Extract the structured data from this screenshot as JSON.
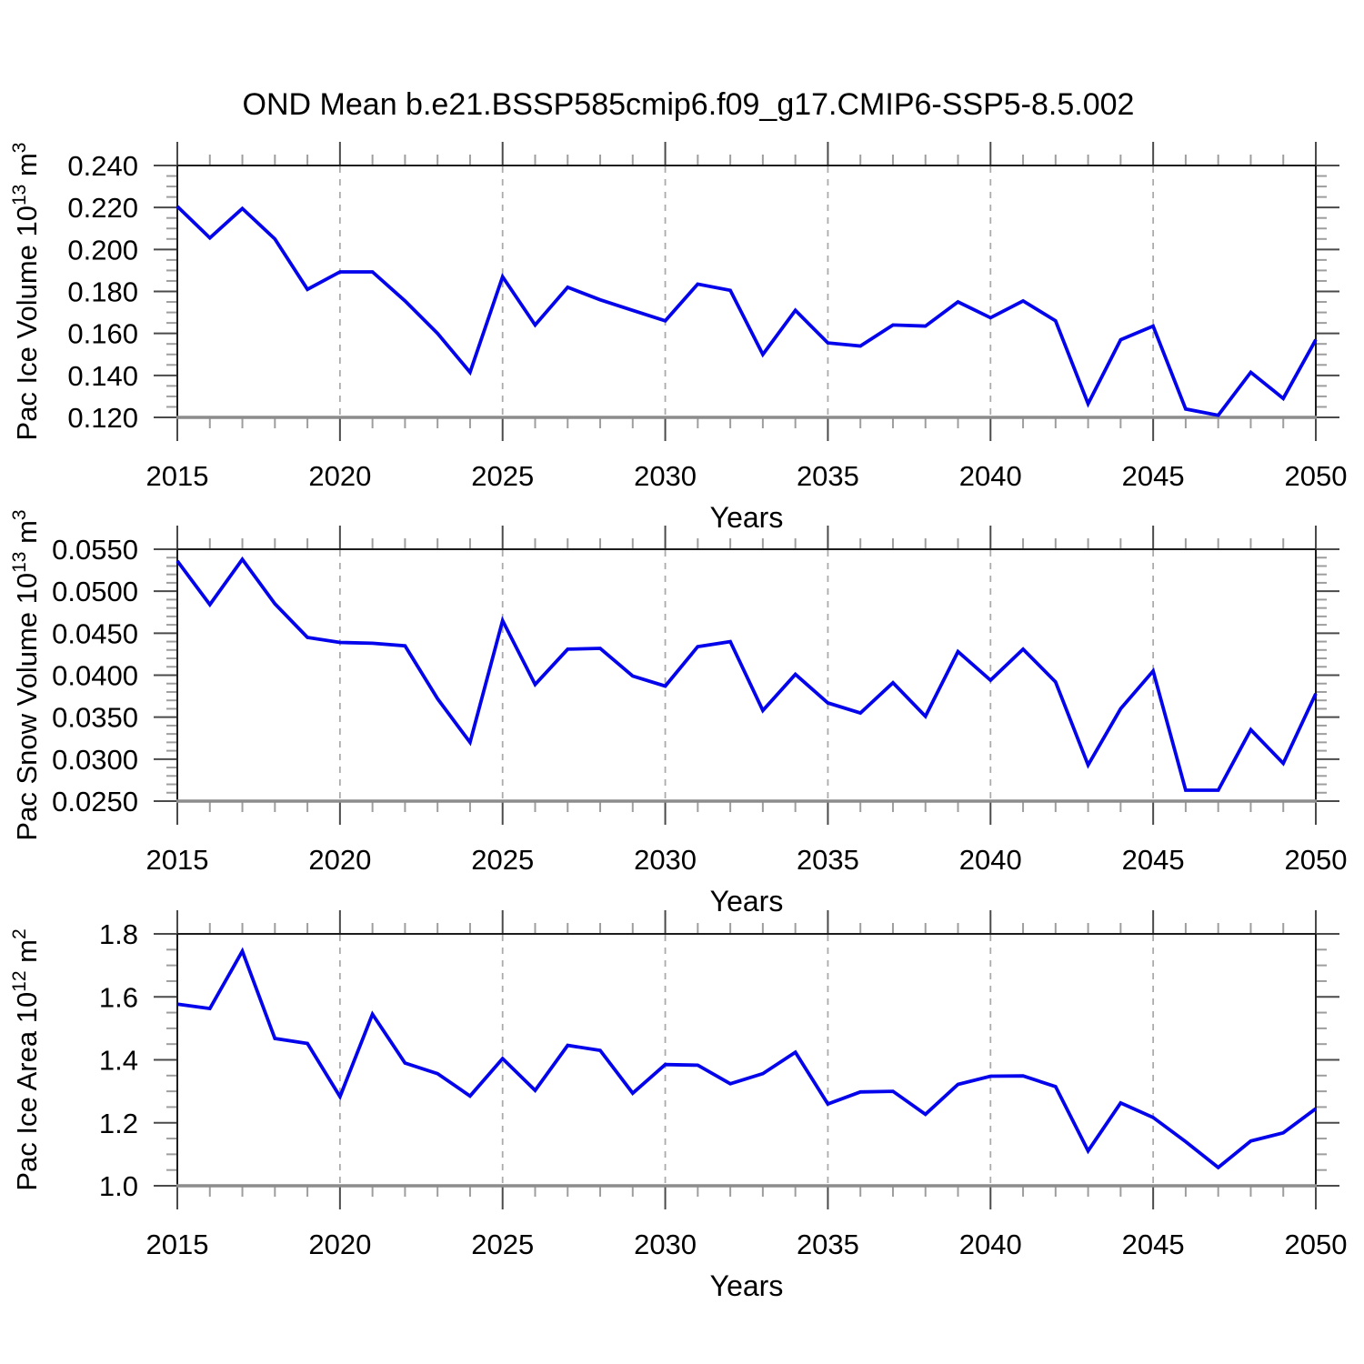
{
  "title": "OND Mean b.e21.BSSP585cmip6.f09_g17.CMIP6-SSP5-8.5.002",
  "colors": {
    "line": "#0404EC",
    "grid": "#ABABAB",
    "frame": "#1C1C1C",
    "axis_base": "#8C8C8C",
    "tick_major": "#4A4A4A",
    "tick_minor": "#9E9E9E",
    "text": "#000000"
  },
  "x_axis": {
    "label": "Years",
    "xlim": [
      2015,
      2050
    ],
    "major_ticks": [
      2015,
      2020,
      2025,
      2030,
      2035,
      2040,
      2045,
      2050
    ],
    "minor_step": 1,
    "gridline_years": [
      2020,
      2025,
      2030,
      2035,
      2040,
      2045
    ],
    "years": [
      2015,
      2016,
      2017,
      2018,
      2019,
      2020,
      2021,
      2022,
      2023,
      2024,
      2025,
      2026,
      2027,
      2028,
      2029,
      2030,
      2031,
      2032,
      2033,
      2034,
      2035,
      2036,
      2037,
      2038,
      2039,
      2040,
      2041,
      2042,
      2043,
      2044,
      2045,
      2046,
      2047,
      2048,
      2049,
      2050
    ]
  },
  "chart_data": [
    {
      "type": "line",
      "name": "pac-ice-volume",
      "ylabel": "Pac Ice Volume 10^13 m^3",
      "ylabel_parts": [
        {
          "t": "Pac Ice Volume 10"
        },
        {
          "t": "13",
          "sup": true
        },
        {
          "t": " m"
        },
        {
          "t": "3",
          "sup": true
        }
      ],
      "ylim": [
        0.12,
        0.24
      ],
      "y_major_step": 0.02,
      "y_minor_step": 0.005,
      "y_tick_decimals": 3,
      "grid": "vertical-dashed",
      "legend": "none",
      "values": [
        0.2205,
        0.2055,
        0.2195,
        0.205,
        0.181,
        0.1893,
        0.1893,
        0.1755,
        0.16,
        0.1415,
        0.187,
        0.164,
        0.182,
        0.176,
        0.171,
        0.166,
        0.1835,
        0.1805,
        0.15,
        0.171,
        0.1555,
        0.154,
        0.164,
        0.1635,
        0.175,
        0.1675,
        0.1755,
        0.166,
        0.1265,
        0.157,
        0.1635,
        0.124,
        0.121,
        0.1415,
        0.129,
        0.157
      ]
    },
    {
      "type": "line",
      "name": "pac-snow-volume",
      "ylabel": "Pac Snow Volume 10^13 m^3",
      "ylabel_parts": [
        {
          "t": "Pac Snow Volume 10"
        },
        {
          "t": "13",
          "sup": true
        },
        {
          "t": " m"
        },
        {
          "t": "3",
          "sup": true
        }
      ],
      "ylim": [
        0.025,
        0.055
      ],
      "y_major_step": 0.005,
      "y_minor_step": 0.001,
      "y_tick_decimals": 4,
      "grid": "vertical-dashed",
      "legend": "none",
      "values": [
        0.0536,
        0.0484,
        0.0538,
        0.0485,
        0.0445,
        0.0439,
        0.0438,
        0.0435,
        0.0372,
        0.032,
        0.0465,
        0.0389,
        0.0431,
        0.0432,
        0.0399,
        0.0387,
        0.0434,
        0.044,
        0.0358,
        0.0401,
        0.0367,
        0.0355,
        0.0391,
        0.0351,
        0.0428,
        0.0394,
        0.0431,
        0.0392,
        0.0293,
        0.036,
        0.0405,
        0.0263,
        0.0263,
        0.0335,
        0.0295,
        0.0378
      ]
    },
    {
      "type": "line",
      "name": "pac-ice-area",
      "ylabel": "Pac Ice Area 10^12 m^2",
      "ylabel_parts": [
        {
          "t": "Pac Ice Area 10"
        },
        {
          "t": "12",
          "sup": true
        },
        {
          "t": " m"
        },
        {
          "t": "2",
          "sup": true
        }
      ],
      "ylim": [
        1.0,
        1.8
      ],
      "y_major_step": 0.2,
      "y_minor_step": 0.05,
      "y_tick_decimals": 1,
      "grid": "vertical-dashed",
      "legend": "none",
      "values": [
        1.577,
        1.563,
        1.745,
        1.468,
        1.452,
        1.283,
        1.545,
        1.39,
        1.356,
        1.285,
        1.404,
        1.303,
        1.446,
        1.43,
        1.294,
        1.385,
        1.383,
        1.324,
        1.356,
        1.424,
        1.26,
        1.298,
        1.3,
        1.227,
        1.322,
        1.348,
        1.349,
        1.315,
        1.111,
        1.263,
        1.217,
        1.14,
        1.058,
        1.142,
        1.168,
        1.245
      ]
    }
  ]
}
